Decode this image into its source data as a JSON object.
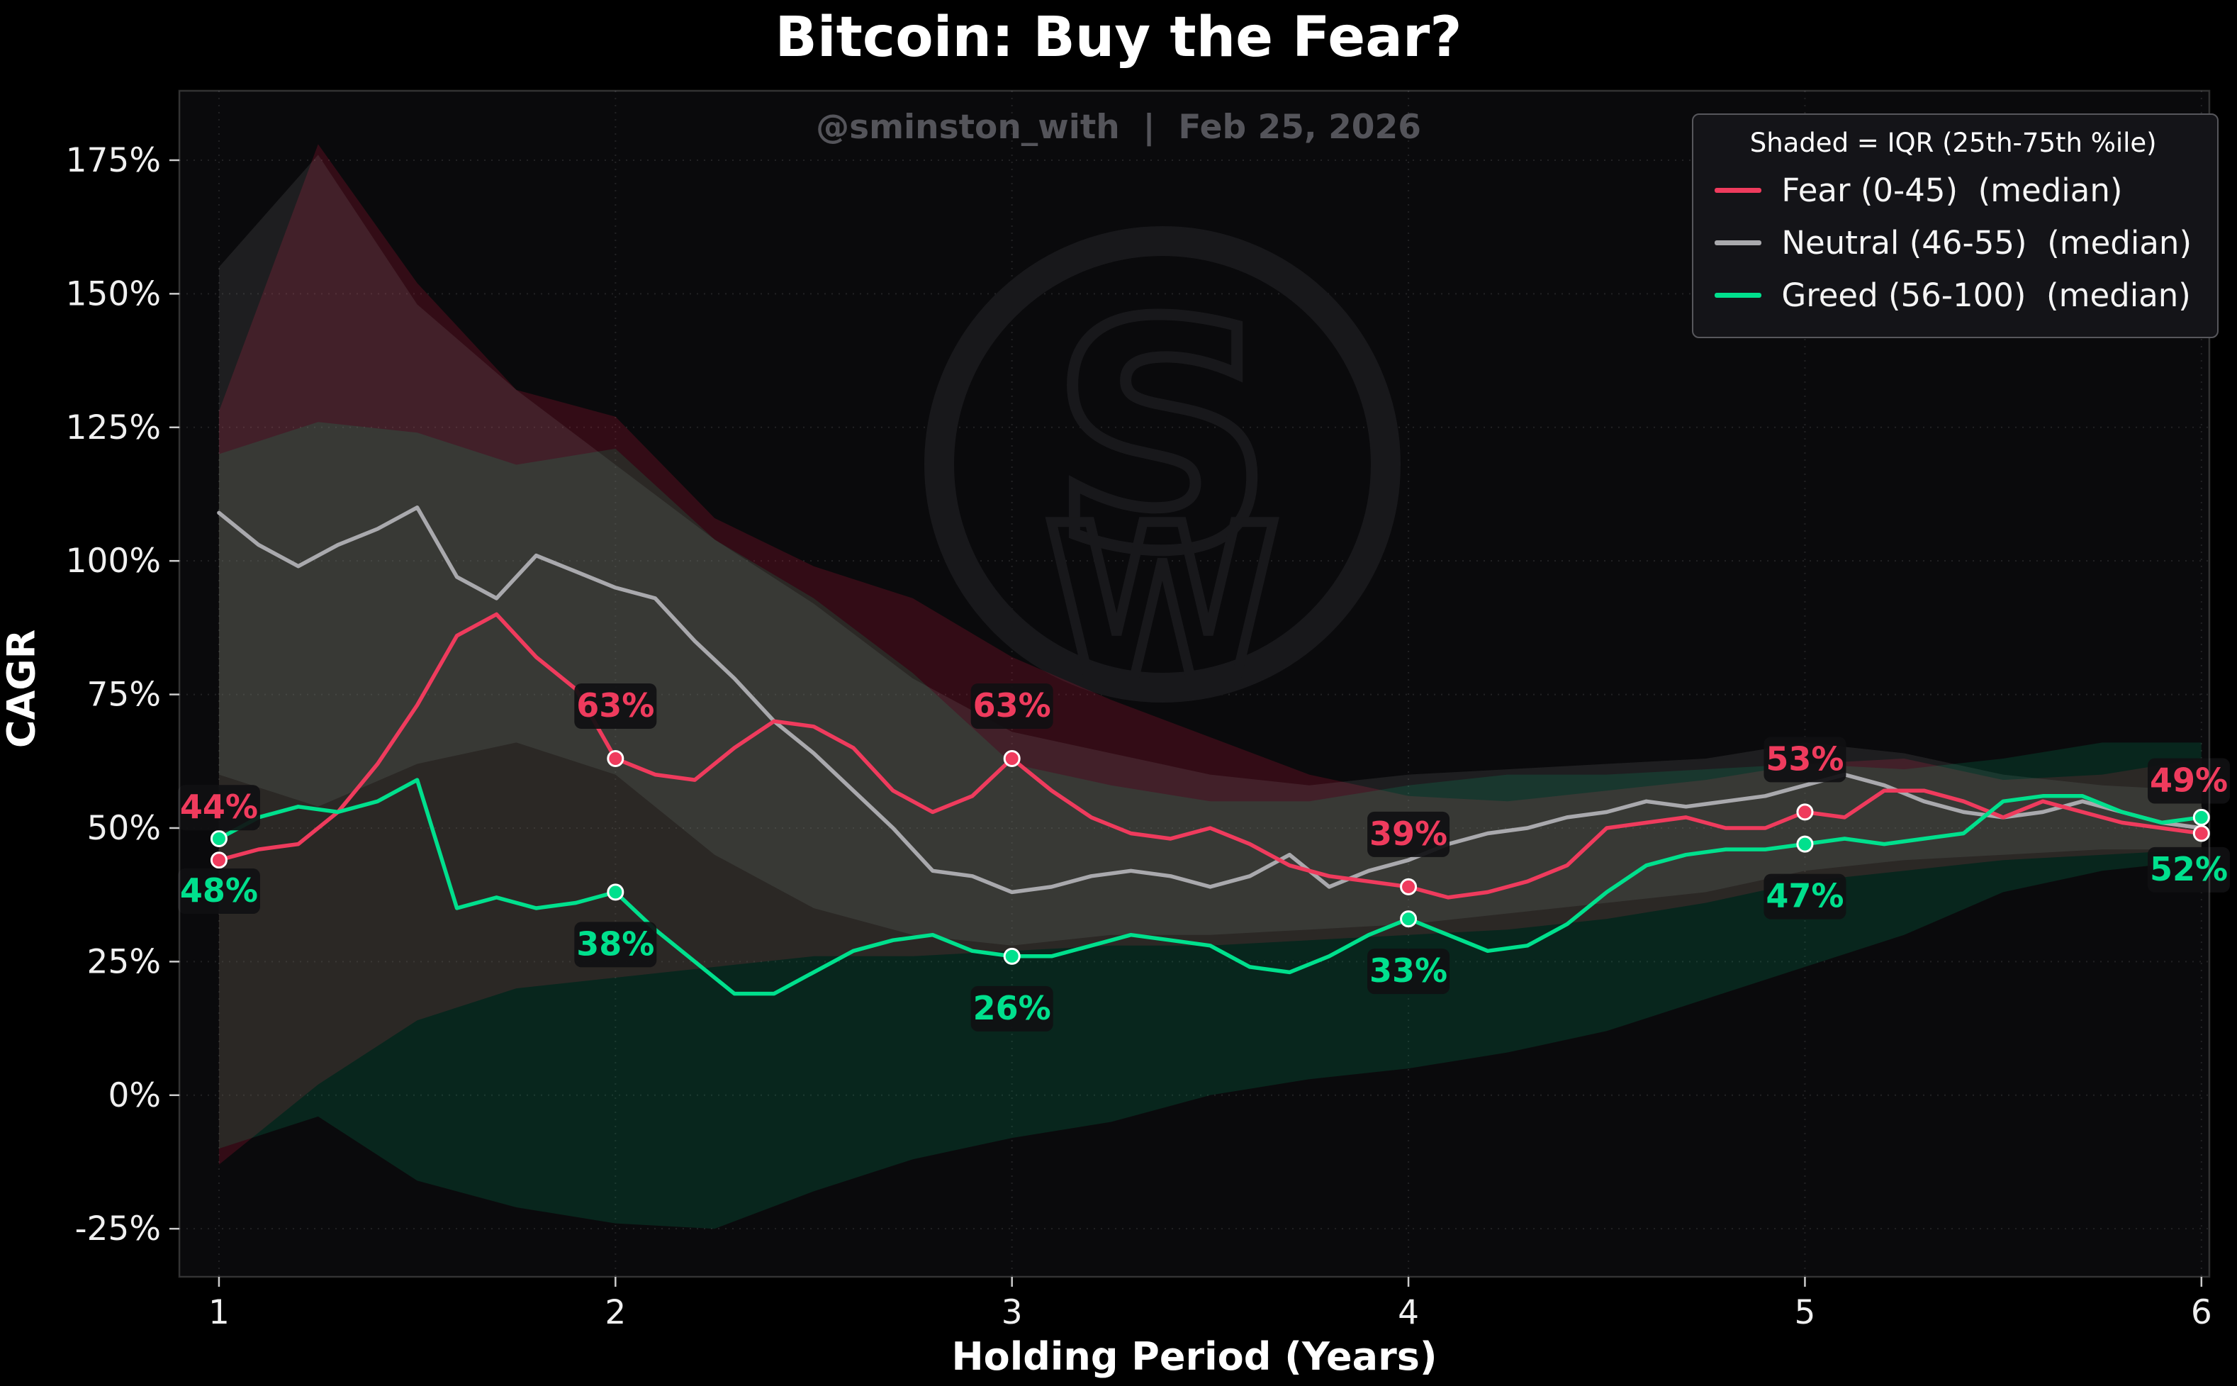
{
  "chart_data": {
    "type": "line",
    "title": "Bitcoin: Buy the Fear?",
    "subtitle": "@sminston_with  |  Feb 25, 2026",
    "watermark_text": "SW",
    "xlabel": "Holding Period (Years)",
    "ylabel": "CAGR",
    "legend_note": "Shaded = IQR (25th-75th %ile)",
    "legend_position": "upper right",
    "grid": true,
    "xlim": [
      0.9,
      6.02
    ],
    "ylim": [
      -34,
      188
    ],
    "xticks": [
      1,
      2,
      3,
      4,
      5,
      6
    ],
    "xtick_labels": [
      "1",
      "2",
      "3",
      "4",
      "5",
      "6"
    ],
    "yticks": [
      -25,
      0,
      25,
      50,
      75,
      100,
      125,
      150,
      175
    ],
    "ytick_labels": [
      "-25%",
      "0%",
      "25%",
      "50%",
      "75%",
      "100%",
      "125%",
      "150%",
      "175%"
    ],
    "colors": {
      "background": "#000000",
      "plot_background": "#0a0a0c",
      "grid": "rgba(255,255,255,0.10)",
      "spine": "rgba(255,255,255,0.18)",
      "tick_label": "#f0f0f0",
      "title": "#ffffff",
      "subtitle": "#54545a",
      "annotation_box": "rgba(16,16,18,0.92)",
      "watermark": "#18181b"
    },
    "median_x": [
      1.0,
      1.1,
      1.2,
      1.3,
      1.4,
      1.5,
      1.6,
      1.7,
      1.8,
      1.9,
      2.0,
      2.1,
      2.2,
      2.3,
      2.4,
      2.5,
      2.6,
      2.7,
      2.8,
      2.9,
      3.0,
      3.1,
      3.2,
      3.3,
      3.4,
      3.5,
      3.6,
      3.7,
      3.8,
      3.9,
      4.0,
      4.1,
      4.2,
      4.3,
      4.4,
      4.5,
      4.6,
      4.7,
      4.8,
      4.9,
      5.0,
      5.1,
      5.2,
      5.3,
      5.4,
      5.5,
      5.6,
      5.7,
      5.8,
      5.9,
      6.0
    ],
    "band_x": [
      1.0,
      1.25,
      1.5,
      1.75,
      2.0,
      2.25,
      2.5,
      2.75,
      3.0,
      3.25,
      3.5,
      3.75,
      4.0,
      4.25,
      4.5,
      4.75,
      5.0,
      5.25,
      5.5,
      5.75,
      6.0
    ],
    "series": [
      {
        "name": "fear",
        "legend_label": "Fear (0-45)  (median)",
        "color": "#ef3b5d",
        "band_fill": "rgba(200,25,60,0.22)",
        "median": [
          44,
          46,
          47,
          53,
          62,
          73,
          86,
          90,
          82,
          76,
          63,
          60,
          59,
          65,
          70,
          69,
          65,
          57,
          53,
          56,
          63,
          57,
          52,
          49,
          48,
          50,
          47,
          43,
          41,
          40,
          39,
          37,
          38,
          40,
          43,
          50,
          51,
          52,
          50,
          50,
          53,
          52,
          57,
          57,
          55,
          52,
          55,
          53,
          51,
          50,
          49
        ],
        "band_upper": [
          128,
          178,
          152,
          132,
          127,
          108,
          99,
          93,
          82,
          74,
          67,
          60,
          56,
          55,
          57,
          59,
          62,
          63,
          59,
          60,
          63
        ],
        "band_lower": [
          -13,
          2,
          14,
          20,
          22,
          24,
          26,
          26,
          27,
          28,
          28,
          29,
          30,
          31,
          33,
          36,
          40,
          42,
          44,
          45,
          46
        ],
        "markers": [
          {
            "x": 1,
            "y": 44,
            "label": "44%",
            "placement": "above"
          },
          {
            "x": 2,
            "y": 63,
            "label": "63%",
            "placement": "above"
          },
          {
            "x": 3,
            "y": 63,
            "label": "63%",
            "placement": "above"
          },
          {
            "x": 4,
            "y": 39,
            "label": "39%",
            "placement": "above"
          },
          {
            "x": 5,
            "y": 53,
            "label": "53%",
            "placement": "above"
          },
          {
            "x": 6,
            "y": 49,
            "label": "49%",
            "placement": "above"
          }
        ]
      },
      {
        "name": "neutral",
        "legend_label": "Neutral (46-55)  (median)",
        "color": "#a9a9ad",
        "band_fill": "rgba(170,170,170,0.13)",
        "median": [
          109,
          103,
          99,
          103,
          106,
          110,
          97,
          93,
          101,
          98,
          95,
          93,
          85,
          78,
          70,
          64,
          57,
          50,
          42,
          41,
          38,
          39,
          41,
          42,
          41,
          39,
          41,
          45,
          39,
          42,
          44,
          47,
          49,
          50,
          52,
          53,
          55,
          54,
          55,
          56,
          58,
          60,
          58,
          55,
          53,
          52,
          53,
          55,
          53,
          51,
          50
        ],
        "band_upper": [
          155,
          176,
          148,
          132,
          118,
          104,
          92,
          78,
          68,
          64,
          60,
          58,
          60,
          61,
          62,
          63,
          66,
          64,
          60,
          58,
          57
        ],
        "band_lower": [
          60,
          54,
          62,
          66,
          60,
          45,
          35,
          30,
          28,
          30,
          30,
          31,
          32,
          34,
          36,
          38,
          42,
          44,
          45,
          46,
          46
        ],
        "markers": []
      },
      {
        "name": "greed",
        "legend_label": "Greed (56-100)  (median)",
        "color": "#00e08d",
        "band_fill": "rgba(0,200,130,0.15)",
        "median": [
          48,
          52,
          54,
          53,
          55,
          59,
          35,
          37,
          35,
          36,
          38,
          31,
          25,
          19,
          19,
          23,
          27,
          29,
          30,
          27,
          26,
          26,
          28,
          30,
          29,
          28,
          24,
          23,
          26,
          30,
          33,
          30,
          27,
          28,
          32,
          38,
          43,
          45,
          46,
          46,
          47,
          48,
          47,
          48,
          49,
          55,
          56,
          56,
          53,
          51,
          52
        ],
        "band_upper": [
          120,
          126,
          124,
          118,
          121,
          104,
          93,
          79,
          62,
          58,
          55,
          55,
          58,
          60,
          60,
          61,
          62,
          61,
          63,
          66,
          66
        ],
        "band_lower": [
          -10,
          -4,
          -16,
          -21,
          -24,
          -25,
          -18,
          -12,
          -8,
          -5,
          0,
          3,
          5,
          8,
          12,
          18,
          24,
          30,
          38,
          42,
          44
        ],
        "markers": [
          {
            "x": 1,
            "y": 48,
            "label": "48%",
            "placement": "below"
          },
          {
            "x": 2,
            "y": 38,
            "label": "38%",
            "placement": "below"
          },
          {
            "x": 3,
            "y": 26,
            "label": "26%",
            "placement": "below"
          },
          {
            "x": 4,
            "y": 33,
            "label": "33%",
            "placement": "below"
          },
          {
            "x": 5,
            "y": 47,
            "label": "47%",
            "placement": "below"
          },
          {
            "x": 6,
            "y": 52,
            "label": "52%",
            "placement": "below"
          }
        ]
      }
    ]
  }
}
